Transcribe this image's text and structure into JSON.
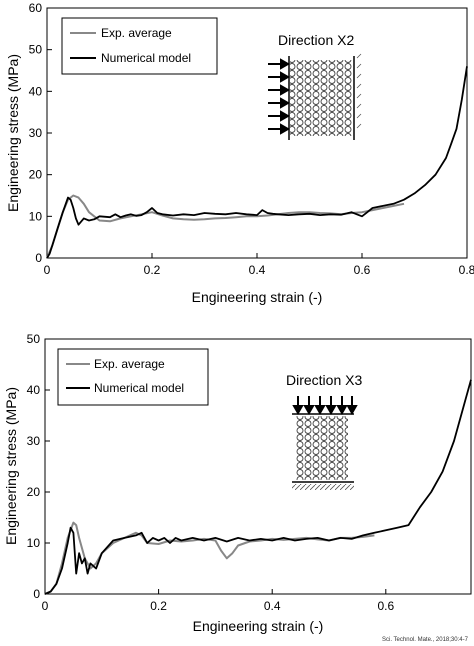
{
  "credit": "Sci. Technol. Mate., 2018;30:4-7",
  "chart_data": [
    {
      "type": "line",
      "xlabel": "Engineering strain (-)",
      "ylabel": "Engineering stress (MPa)",
      "xlim": [
        0,
        0.8
      ],
      "ylim": [
        0,
        60
      ],
      "xticks": [
        0,
        0.2,
        0.4,
        0.6,
        0.8
      ],
      "xtick_labels": [
        "0",
        "0.2",
        "0.4",
        "0.6",
        "0.8"
      ],
      "yticks": [
        0,
        10,
        20,
        30,
        40,
        50,
        60
      ],
      "ytick_labels": [
        "0",
        "10",
        "20",
        "30",
        "40",
        "50",
        "60"
      ],
      "grid": false,
      "legend_position": "top-left",
      "annotation": "Direction X2",
      "series": [
        {
          "name": "Exp. average",
          "color": "#888888",
          "x": [
            0,
            0.01,
            0.02,
            0.03,
            0.04,
            0.05,
            0.06,
            0.07,
            0.08,
            0.1,
            0.12,
            0.14,
            0.16,
            0.18,
            0.2,
            0.22,
            0.24,
            0.26,
            0.28,
            0.3,
            0.32,
            0.34,
            0.36,
            0.38,
            0.4,
            0.42,
            0.44,
            0.46,
            0.48,
            0.5,
            0.52,
            0.54,
            0.56,
            0.58,
            0.6,
            0.62,
            0.64,
            0.66,
            0.68
          ],
          "y": [
            0,
            3,
            7,
            11,
            14,
            15,
            14.5,
            13,
            11,
            9,
            8.8,
            9.5,
            10,
            10.5,
            11,
            10.2,
            9.5,
            9.3,
            9.2,
            9.3,
            9.5,
            9.6,
            9.8,
            10,
            10,
            10.2,
            10.5,
            10.8,
            11,
            11,
            10.8,
            10.7,
            10.5,
            10.8,
            11,
            11.5,
            12,
            12.5,
            13
          ]
        },
        {
          "name": "Numerical model",
          "color": "#000000",
          "x": [
            0,
            0.005,
            0.01,
            0.02,
            0.03,
            0.04,
            0.045,
            0.05,
            0.055,
            0.06,
            0.07,
            0.08,
            0.09,
            0.1,
            0.12,
            0.13,
            0.14,
            0.15,
            0.16,
            0.17,
            0.18,
            0.19,
            0.2,
            0.21,
            0.22,
            0.24,
            0.26,
            0.28,
            0.3,
            0.32,
            0.34,
            0.36,
            0.38,
            0.4,
            0.41,
            0.42,
            0.43,
            0.44,
            0.46,
            0.48,
            0.5,
            0.52,
            0.54,
            0.56,
            0.58,
            0.59,
            0.6,
            0.61,
            0.62,
            0.64,
            0.66,
            0.68,
            0.7,
            0.72,
            0.74,
            0.76,
            0.77,
            0.78,
            0.79,
            0.8
          ],
          "y": [
            0,
            1,
            3,
            7,
            11,
            14.5,
            14,
            12,
            9.5,
            8,
            9.5,
            9,
            9.3,
            10,
            9.8,
            10.5,
            9.8,
            10.2,
            10.5,
            10.1,
            10.3,
            11,
            12,
            10.8,
            10.5,
            10.2,
            10.5,
            10.3,
            10.8,
            10.6,
            10.5,
            10.8,
            10.5,
            10.3,
            11.5,
            10.8,
            10.6,
            10.5,
            10.3,
            10.5,
            10.6,
            10.3,
            10.5,
            10.4,
            11,
            10.5,
            10,
            11,
            12,
            12.5,
            13,
            14,
            15.5,
            17.5,
            20,
            24,
            27.5,
            31,
            38,
            46
          ]
        }
      ]
    },
    {
      "type": "line",
      "xlabel": "Engineering strain (-)",
      "ylabel": "Engineering stress (MPa)",
      "xlim": [
        0,
        0.75
      ],
      "ylim": [
        0,
        50
      ],
      "xticks": [
        0,
        0.2,
        0.4,
        0.6
      ],
      "xtick_labels": [
        "0",
        "0.2",
        "0.4",
        "0.6"
      ],
      "yticks": [
        0,
        10,
        20,
        30,
        40,
        50
      ],
      "ytick_labels": [
        "0",
        "10",
        "20",
        "30",
        "40",
        "50"
      ],
      "grid": false,
      "legend_position": "top-left",
      "annotation": "Direction X3",
      "series": [
        {
          "name": "Exp. average",
          "color": "#888888",
          "x": [
            0,
            0.01,
            0.02,
            0.03,
            0.04,
            0.05,
            0.055,
            0.06,
            0.07,
            0.08,
            0.09,
            0.1,
            0.12,
            0.14,
            0.16,
            0.17,
            0.18,
            0.2,
            0.22,
            0.24,
            0.26,
            0.28,
            0.3,
            0.31,
            0.32,
            0.33,
            0.34,
            0.36,
            0.38,
            0.4,
            0.42,
            0.44,
            0.46,
            0.48,
            0.5,
            0.52,
            0.54,
            0.56,
            0.58
          ],
          "y": [
            0,
            0.5,
            2,
            6,
            11,
            14,
            13.5,
            11,
            7,
            5,
            6,
            8,
            10,
            11,
            12,
            11.5,
            10,
            9.8,
            10.5,
            10.3,
            10.5,
            10.8,
            10.5,
            8.5,
            7,
            8,
            9.5,
            10.3,
            10.5,
            10.8,
            10.6,
            10.8,
            11,
            10.7,
            10.5,
            11,
            11,
            11.2,
            11.5
          ]
        },
        {
          "name": "Numerical model",
          "color": "#000000",
          "x": [
            0,
            0.01,
            0.02,
            0.03,
            0.04,
            0.045,
            0.05,
            0.055,
            0.06,
            0.065,
            0.07,
            0.075,
            0.08,
            0.09,
            0.1,
            0.12,
            0.14,
            0.16,
            0.17,
            0.18,
            0.19,
            0.2,
            0.21,
            0.22,
            0.23,
            0.24,
            0.26,
            0.28,
            0.3,
            0.32,
            0.34,
            0.36,
            0.38,
            0.4,
            0.42,
            0.44,
            0.46,
            0.48,
            0.5,
            0.52,
            0.54,
            0.56,
            0.58,
            0.6,
            0.62,
            0.64,
            0.66,
            0.68,
            0.7,
            0.72,
            0.74,
            0.75
          ],
          "y": [
            0,
            0.5,
            2,
            5,
            10,
            13,
            12,
            4,
            8,
            6,
            7,
            4,
            6,
            5,
            8,
            10.5,
            11,
            11.5,
            12,
            10,
            11,
            10.5,
            11,
            10,
            11,
            10.5,
            11,
            10.5,
            11,
            10.3,
            11,
            10.5,
            10.8,
            10.5,
            11,
            10.5,
            10.8,
            11,
            10.5,
            11,
            10.8,
            11.5,
            12,
            12.5,
            13,
            13.5,
            17,
            20,
            24,
            30,
            38,
            42
          ]
        }
      ]
    }
  ]
}
